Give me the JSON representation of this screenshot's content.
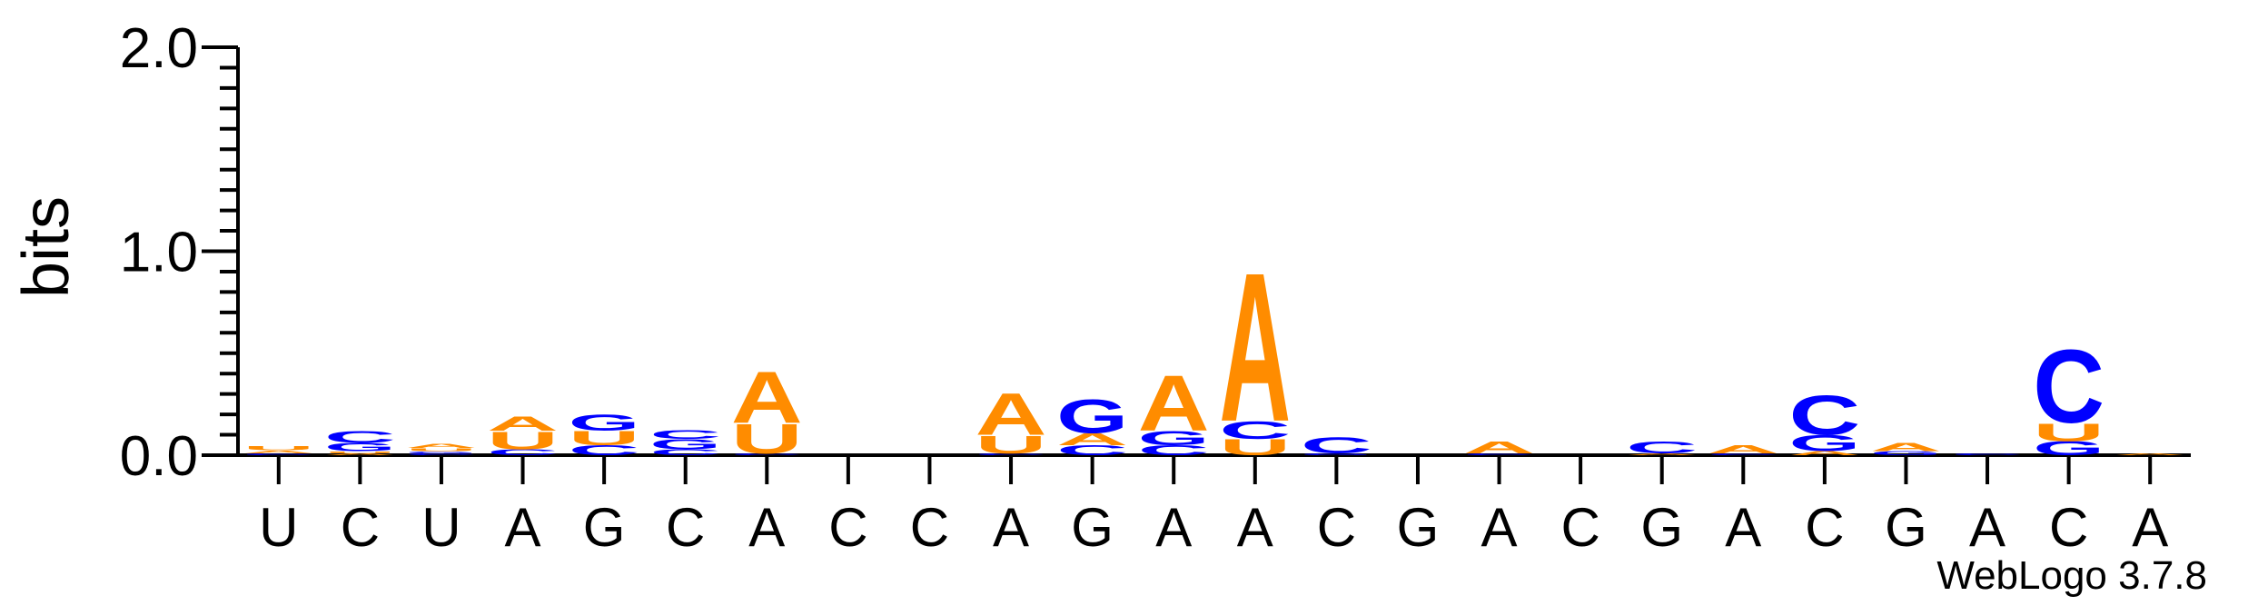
{
  "chart_data": {
    "type": "sequence-logo",
    "ylabel": "bits",
    "ylim": [
      0,
      2.0
    ],
    "yticks": [
      {
        "value": 0,
        "label": "0.0"
      },
      {
        "value": 1,
        "label": "1.0"
      },
      {
        "value": 2,
        "label": "2.0"
      }
    ],
    "positions": [
      "U",
      "C",
      "U",
      "A",
      "G",
      "C",
      "A",
      "C",
      "C",
      "A",
      "G",
      "A",
      "A",
      "C",
      "G",
      "A",
      "C",
      "G",
      "A",
      "C",
      "G",
      "A",
      "C",
      "A"
    ],
    "stacks": [
      [
        {
          "l": "C",
          "v": 0.01
        },
        {
          "l": "A",
          "v": 0.015
        },
        {
          "l": "U",
          "v": 0.02
        }
      ],
      [
        {
          "l": "A",
          "v": 0.01
        },
        {
          "l": "U",
          "v": 0.01
        },
        {
          "l": "G",
          "v": 0.04
        },
        {
          "l": "C",
          "v": 0.06
        }
      ],
      [
        {
          "l": "C",
          "v": 0.01
        },
        {
          "l": "G",
          "v": 0.01
        },
        {
          "l": "U",
          "v": 0.015
        },
        {
          "l": "A",
          "v": 0.02
        }
      ],
      [
        {
          "l": "C",
          "v": 0.03
        },
        {
          "l": "U",
          "v": 0.09
        },
        {
          "l": "A",
          "v": 0.07
        }
      ],
      [
        {
          "l": "C",
          "v": 0.05
        },
        {
          "l": "U",
          "v": 0.07
        },
        {
          "l": "G",
          "v": 0.08
        }
      ],
      [
        {
          "l": "C",
          "v": 0.03
        },
        {
          "l": "G",
          "v": 0.05
        },
        {
          "l": "C",
          "v": 0.045
        }
      ],
      [
        {
          "l": "C",
          "v": 0.01
        },
        {
          "l": "U",
          "v": 0.15
        },
        {
          "l": "A",
          "v": 0.26
        }
      ],
      [],
      [],
      [
        {
          "l": "C",
          "v": 0.01
        },
        {
          "l": "U",
          "v": 0.09
        },
        {
          "l": "A",
          "v": 0.21
        }
      ],
      [
        {
          "l": "C",
          "v": 0.05
        },
        {
          "l": "A",
          "v": 0.06
        },
        {
          "l": "G",
          "v": 0.17
        }
      ],
      [
        {
          "l": "C",
          "v": 0.05
        },
        {
          "l": "G",
          "v": 0.07
        },
        {
          "l": "A",
          "v": 0.28
        }
      ],
      [
        {
          "l": "U",
          "v": 0.08
        },
        {
          "l": "C",
          "v": 0.09
        },
        {
          "l": "A",
          "v": 0.75
        }
      ],
      [
        {
          "l": "G",
          "v": 0.01
        },
        {
          "l": "C",
          "v": 0.08
        }
      ],
      [],
      [
        {
          "l": "C",
          "v": 0.01
        },
        {
          "l": "A",
          "v": 0.06
        }
      ],
      [],
      [
        {
          "l": "A",
          "v": 0.01
        },
        {
          "l": "C",
          "v": 0.06
        }
      ],
      [
        {
          "l": "C",
          "v": 0.01
        },
        {
          "l": "A",
          "v": 0.04
        }
      ],
      [
        {
          "l": "A",
          "v": 0.02
        },
        {
          "l": "G",
          "v": 0.08
        },
        {
          "l": "C",
          "v": 0.2
        }
      ],
      [
        {
          "l": "G",
          "v": 0.02
        },
        {
          "l": "A",
          "v": 0.04
        }
      ],
      [
        {
          "l": "C",
          "v": 0.01
        }
      ],
      [
        {
          "l": "G",
          "v": 0.07
        },
        {
          "l": "U",
          "v": 0.09
        },
        {
          "l": "C",
          "v": 0.37
        }
      ],
      [
        {
          "l": "A",
          "v": 0.01
        }
      ]
    ],
    "colors": {
      "A": "#ff8c00",
      "U": "#ff8c00",
      "G": "#0000ff",
      "C": "#0000ff"
    },
    "grid": false
  },
  "footer": {
    "credit": "WebLogo 3.7.8"
  }
}
